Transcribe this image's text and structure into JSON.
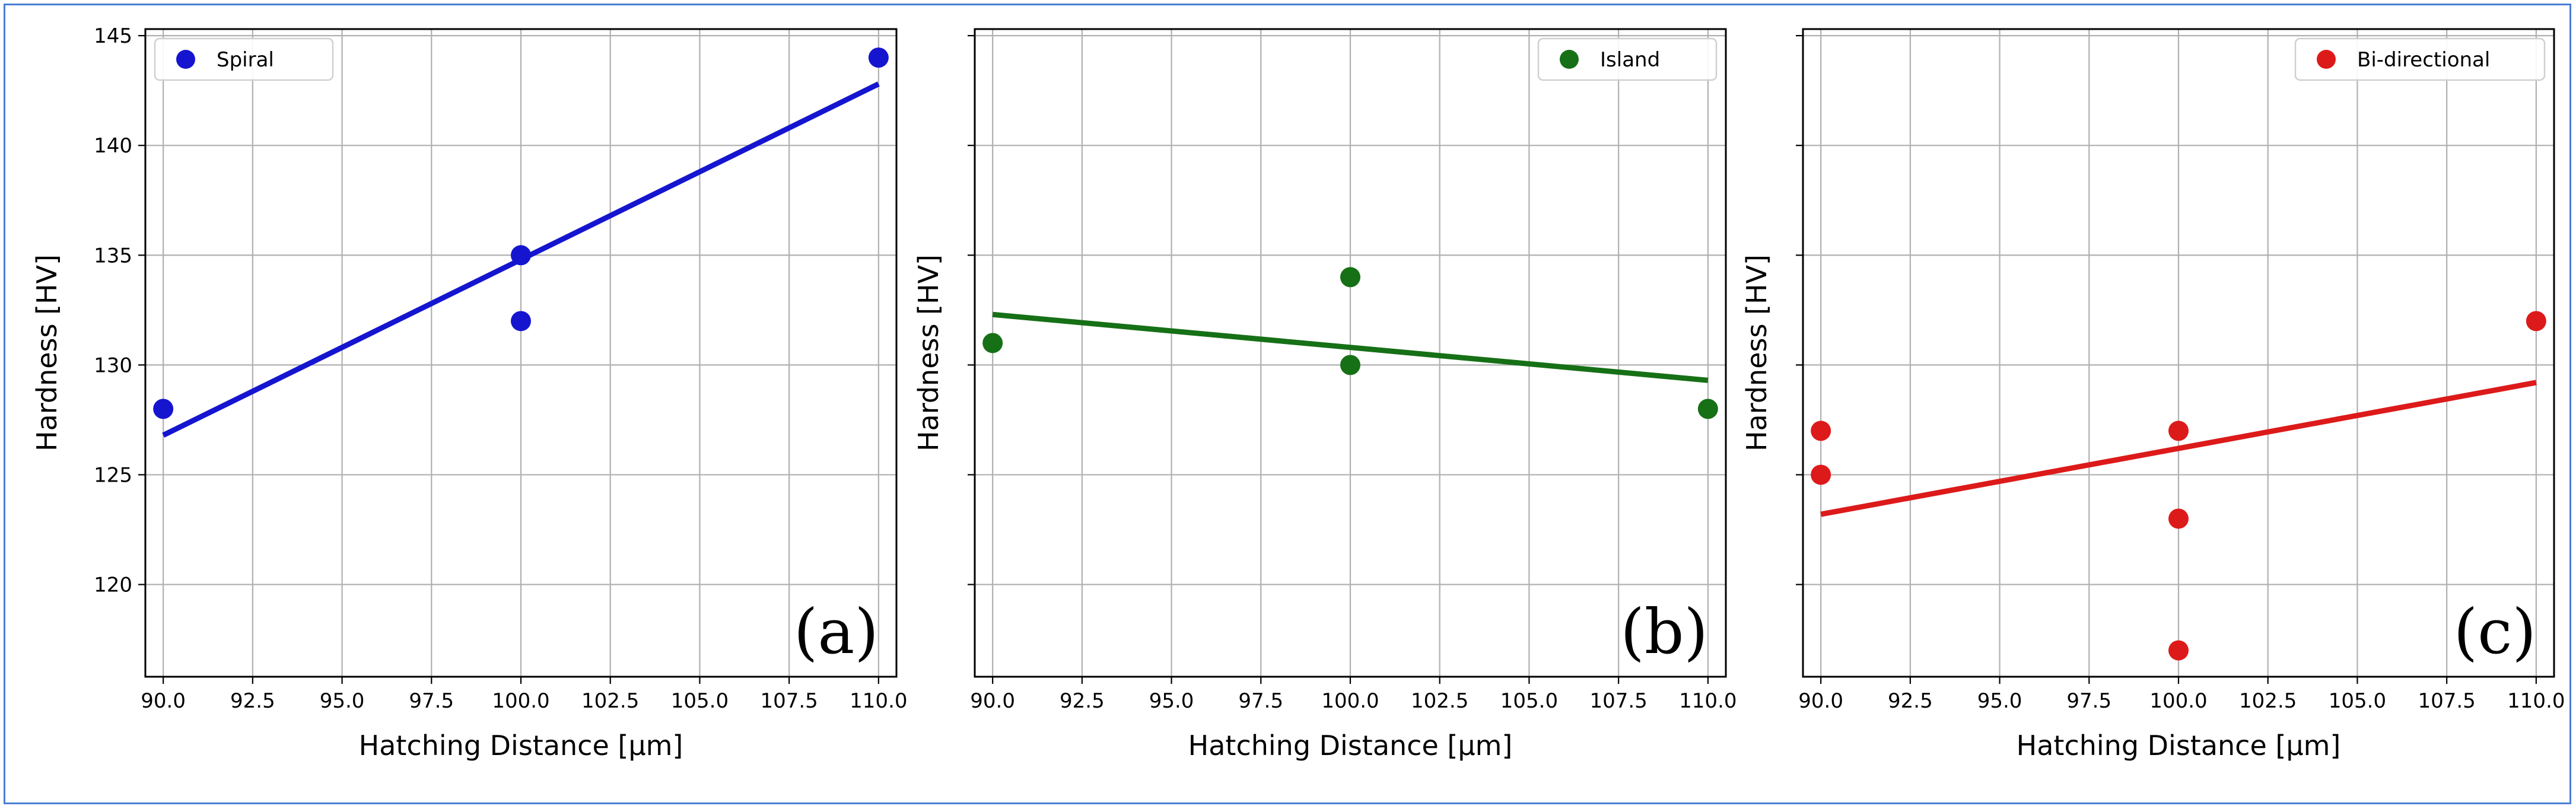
{
  "chart_data": [
    {
      "type": "scatter",
      "panel_label": "(a)",
      "legend": "Spiral",
      "color": "#1515d0",
      "xlabel": "Hatching Distance [µm]",
      "ylabel": "Hardness [HV]",
      "xlim": [
        89.5,
        110.5
      ],
      "ylim": [
        115.8,
        145.3
      ],
      "xticks": [
        "90.0",
        "92.5",
        "95.0",
        "97.5",
        "100.0",
        "102.5",
        "105.0",
        "107.5",
        "110.0"
      ],
      "yticks": [
        "120",
        "125",
        "130",
        "135",
        "140",
        "145"
      ],
      "show_ytick_labels": true,
      "points": {
        "x": [
          90,
          100,
          100,
          110
        ],
        "y": [
          128,
          135,
          132,
          144
        ]
      },
      "fit": {
        "x": [
          90,
          110
        ],
        "y": [
          126.8,
          142.8
        ]
      }
    },
    {
      "type": "scatter",
      "panel_label": "(b)",
      "legend": "Island",
      "color": "#167016",
      "xlabel": "Hatching Distance [µm]",
      "ylabel": "Hardness [HV]",
      "xlim": [
        89.5,
        110.5
      ],
      "ylim": [
        115.8,
        145.3
      ],
      "xticks": [
        "90.0",
        "92.5",
        "95.0",
        "97.5",
        "100.0",
        "102.5",
        "105.0",
        "107.5",
        "110.0"
      ],
      "yticks": [
        "120",
        "125",
        "130",
        "135",
        "140",
        "145"
      ],
      "show_ytick_labels": false,
      "points": {
        "x": [
          90,
          100,
          100,
          110
        ],
        "y": [
          131,
          134,
          130,
          128
        ]
      },
      "fit": {
        "x": [
          90,
          110
        ],
        "y": [
          132.3,
          129.3
        ]
      }
    },
    {
      "type": "scatter",
      "panel_label": "(c)",
      "legend": "Bi-directional",
      "color": "#dd1a1a",
      "xlabel": "Hatching Distance [µm]",
      "ylabel": "Hardness [HV]",
      "xlim": [
        89.5,
        110.5
      ],
      "ylim": [
        115.8,
        145.3
      ],
      "xticks": [
        "90.0",
        "92.5",
        "95.0",
        "97.5",
        "100.0",
        "102.5",
        "105.0",
        "107.5",
        "110.0"
      ],
      "yticks": [
        "120",
        "125",
        "130",
        "135",
        "140",
        "145"
      ],
      "show_ytick_labels": false,
      "points": {
        "x": [
          90,
          90,
          100,
          100,
          100,
          110
        ],
        "y": [
          127,
          125,
          127,
          123,
          117,
          132
        ]
      },
      "fit": {
        "x": [
          90,
          110
        ],
        "y": [
          123.2,
          129.2
        ]
      }
    }
  ]
}
